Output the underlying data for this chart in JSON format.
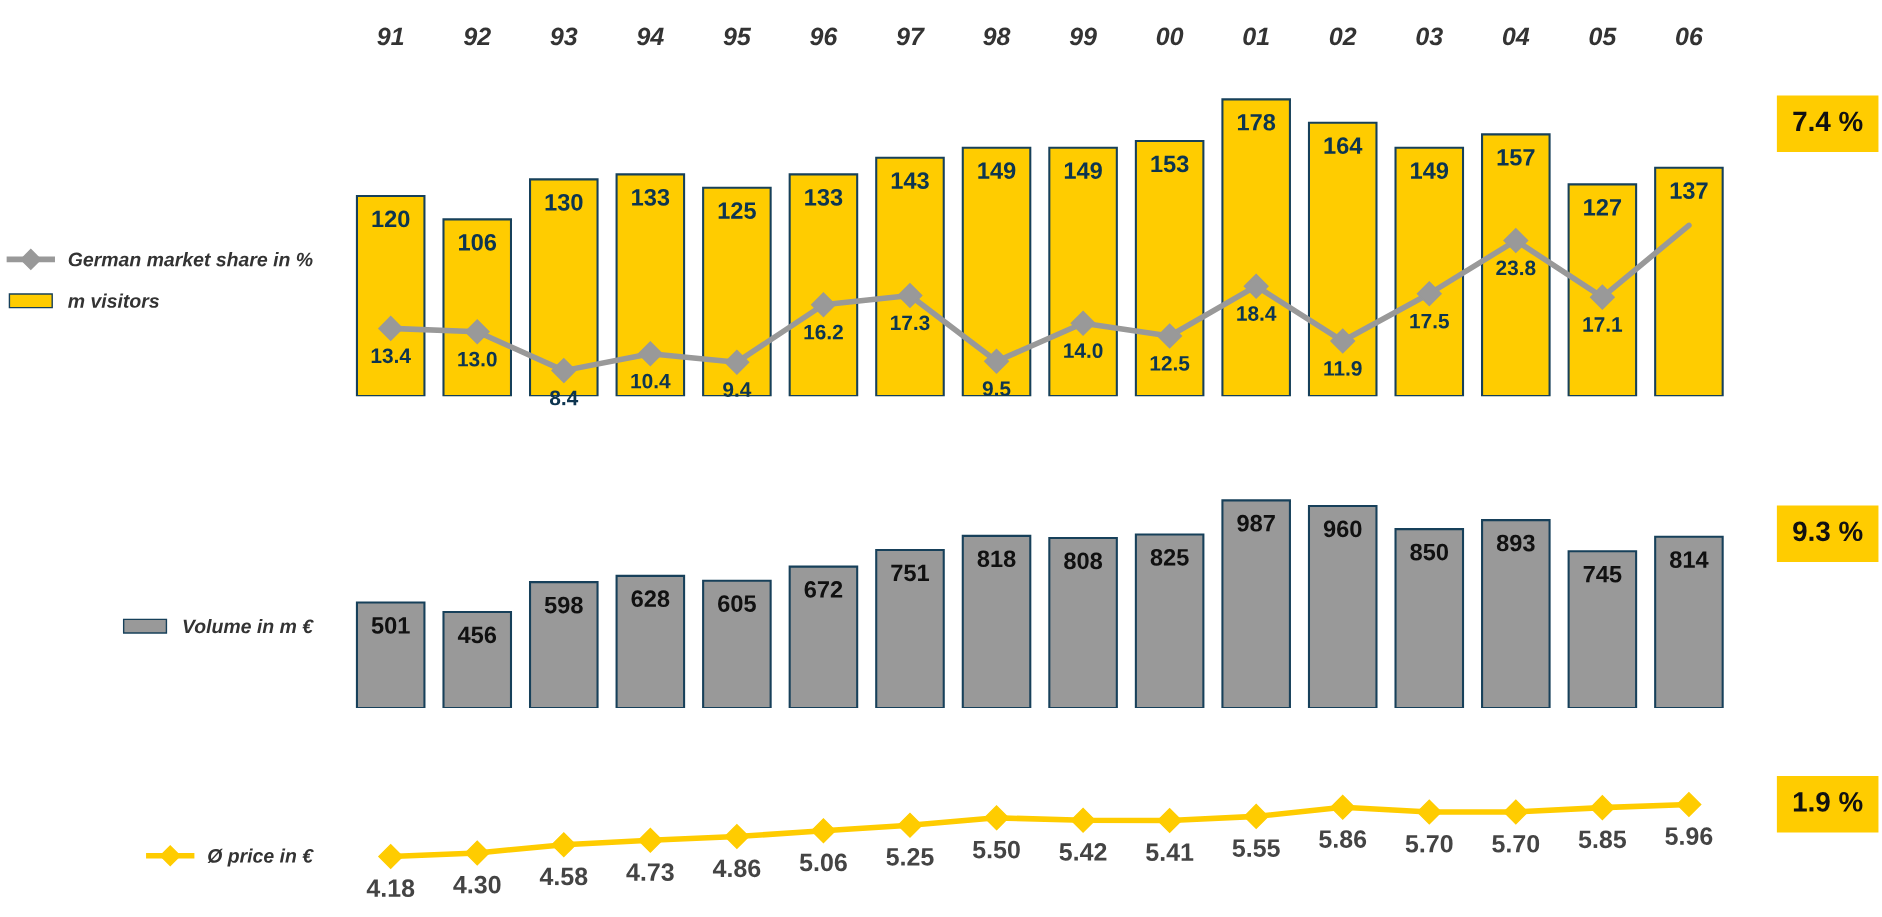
{
  "chart_data": [
    {
      "type": "bar",
      "categories": [
        "91",
        "92",
        "93",
        "94",
        "95",
        "96",
        "97",
        "98",
        "99",
        "00",
        "01",
        "02",
        "03",
        "04",
        "05",
        "06"
      ],
      "tick_labels": "x",
      "legend": "left",
      "grid": false,
      "annotations": [
        "7.4 %"
      ],
      "series": [
        {
          "name": "German market share in %",
          "type": "line",
          "axis": "y2",
          "color": "#999999",
          "marker": "diamond",
          "values": [
            13.4,
            13.0,
            8.4,
            10.4,
            9.4,
            16.2,
            17.3,
            9.5,
            14.0,
            12.5,
            18.4,
            11.9,
            17.5,
            23.8,
            17.1,
            25.6
          ],
          "value_labels": [
            "13.4",
            "13.0",
            "8.4",
            "10.4",
            "9.4",
            "16.2",
            "17.3",
            "9.5",
            "14.0",
            "12.5",
            "18.4",
            "11.9",
            "17.5",
            "23.8",
            "17.1",
            null
          ]
        },
        {
          "name": "m visitors",
          "color": "#ffcc00",
          "values": [
            120,
            106,
            130,
            133,
            125,
            133,
            143,
            149,
            149,
            153,
            178,
            164,
            149,
            157,
            127,
            137
          ],
          "value_labels": [
            "120",
            "106",
            "130",
            "133",
            "125",
            "133",
            "143",
            "149",
            "149",
            "153",
            "178",
            "164",
            "149",
            "157",
            "127",
            "137"
          ]
        }
      ]
    },
    {
      "type": "bar",
      "categories": [
        "91",
        "92",
        "93",
        "94",
        "95",
        "96",
        "97",
        "98",
        "99",
        "00",
        "01",
        "02",
        "03",
        "04",
        "05",
        "06"
      ],
      "tick_labels": false,
      "legend": "left",
      "grid": false,
      "data_labels": true,
      "annotations": [
        "9.3 %"
      ],
      "series": [
        {
          "name": "Volume in m €",
          "color": "#999999",
          "values": [
            501,
            456,
            598,
            628,
            605,
            672,
            751,
            818,
            808,
            825,
            987,
            960,
            850,
            893,
            745,
            814
          ]
        }
      ]
    },
    {
      "type": "line",
      "categories": [
        "91",
        "92",
        "93",
        "94",
        "95",
        "96",
        "97",
        "98",
        "99",
        "00",
        "01",
        "02",
        "03",
        "04",
        "05",
        "06"
      ],
      "tick_labels": false,
      "legend": "left",
      "grid": false,
      "marker": "diamond",
      "annotations": [
        "1.9 %"
      ],
      "series": [
        {
          "name": "Ø price in €",
          "color": "#ffcc00",
          "values": [
            4.18,
            4.3,
            4.58,
            4.73,
            4.86,
            5.06,
            5.25,
            5.5,
            5.42,
            5.41,
            5.55,
            5.86,
            5.7,
            5.7,
            5.85,
            5.96
          ],
          "value_labels": [
            "4.18",
            "4.30",
            "4.58",
            "4.73",
            "4.86",
            "5.06",
            "5.25",
            "5.50",
            "5.42",
            "5.41",
            "5.55",
            "5.86",
            "5.70",
            "5.70",
            "5.85",
            "5.96"
          ]
        }
      ]
    }
  ]
}
